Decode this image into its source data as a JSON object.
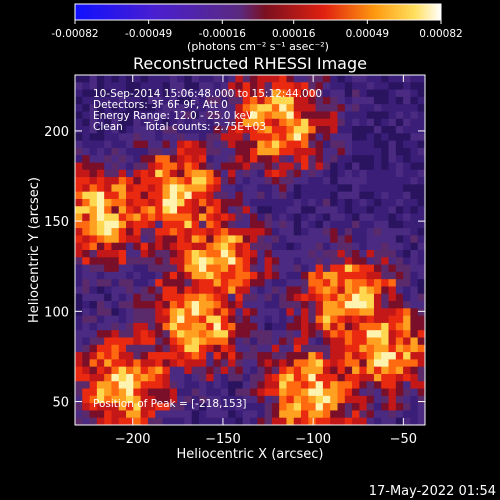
{
  "title": "Reconstructed RHESSI Image",
  "colorbar": {
    "tick_labels": [
      "-0.00082",
      "-0.00049",
      "-0.00016",
      "0.00016",
      "0.00049",
      "0.00082"
    ],
    "tick_values": [
      -0.00082,
      -0.00049,
      -0.00016,
      0.00016,
      0.00049,
      0.00082
    ],
    "range": [
      -0.00082,
      0.00082
    ],
    "units_label": "(photons cm⁻² s⁻¹ asec⁻²)"
  },
  "annotations": {
    "line1": "10-Sep-2014 15:06:48.000 to 15:12:44.000",
    "line2": "Detectors: 3F 6F 9F, Att 0",
    "line3": "Energy Range: 12.0 - 25.0 keV",
    "line4_method": "Clean",
    "line4_counts": "Total counts: 2.75E+03",
    "peak": "Position of Peak = [-218,153]"
  },
  "timestamp": "17-May-2022 01:54",
  "chart_data": {
    "type": "heatmap",
    "title": "Reconstructed RHESSI Image",
    "xlabel": "Heliocentric X (arcsec)",
    "ylabel": "Heliocentric Y (arcsec)",
    "xlim": [
      -232,
      -38
    ],
    "ylim": [
      37,
      231
    ],
    "xticks": [
      -200,
      -150,
      -100,
      -50
    ],
    "yticks": [
      50,
      100,
      150,
      200
    ],
    "xtick_labels": [
      "−200",
      "−150",
      "−100",
      "−50"
    ],
    "ytick_labels": [
      "50",
      "100",
      "150",
      "200"
    ],
    "peak_position": [
      -218,
      153
    ],
    "colormap": "RHESSI purple-red-yellow-white",
    "hot_regions": [
      {
        "x": -218,
        "y": 153
      },
      {
        "x": -175,
        "y": 165
      },
      {
        "x": -155,
        "y": 128
      },
      {
        "x": -165,
        "y": 95
      },
      {
        "x": -205,
        "y": 60
      },
      {
        "x": -80,
        "y": 105
      },
      {
        "x": -62,
        "y": 80
      },
      {
        "x": -120,
        "y": 205
      },
      {
        "x": -100,
        "y": 55
      }
    ]
  }
}
